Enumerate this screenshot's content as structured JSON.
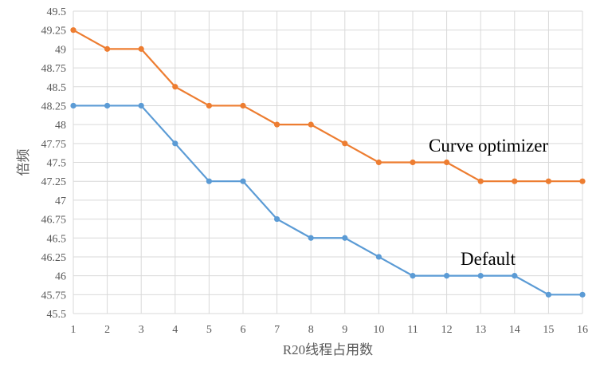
{
  "chart_data": {
    "type": "line",
    "title": "",
    "xlabel": "R20线程占用数",
    "ylabel": "倍频",
    "x": [
      1,
      2,
      3,
      4,
      5,
      6,
      7,
      8,
      9,
      10,
      11,
      12,
      13,
      14,
      15,
      16
    ],
    "ylim": [
      45.5,
      49.5
    ],
    "yticks": [
      "45.5",
      "45.75",
      "46",
      "46.25",
      "46.5",
      "46.75",
      "47",
      "47.25",
      "47.5",
      "47.75",
      "48",
      "48.25",
      "48.5",
      "48.75",
      "49",
      "49.25",
      "49.5"
    ],
    "grid": true,
    "legend": "none",
    "series": [
      {
        "name": "Curve optimizer",
        "color": "#ED7D31",
        "values": [
          49.25,
          49,
          49,
          48.5,
          48.25,
          48.25,
          48,
          48,
          47.75,
          47.5,
          47.5,
          47.5,
          47.25,
          47.25,
          47.25,
          47.25
        ]
      },
      {
        "name": "Default",
        "color": "#5B9BD5",
        "values": [
          48.25,
          48.25,
          48.25,
          47.75,
          47.25,
          47.25,
          46.75,
          46.5,
          46.5,
          46.25,
          46,
          46,
          46,
          46,
          45.75,
          45.75
        ]
      }
    ]
  }
}
